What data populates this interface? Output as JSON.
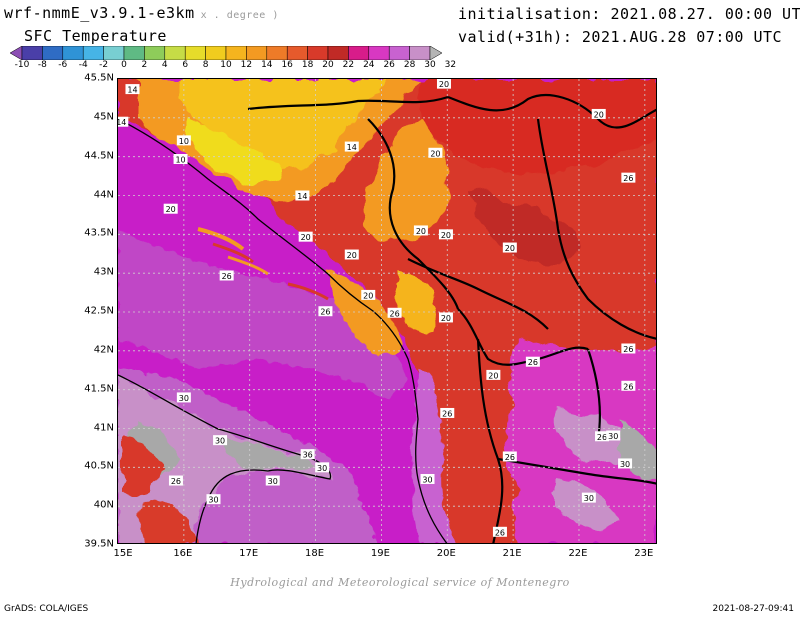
{
  "header": {
    "model": "wrf-nmmE_v3.9.1-e3km",
    "model_unit": "x . degree )",
    "field": "SFC Temperature",
    "init": "initialisation: 2021.08.27. 00:00 UTC",
    "valid": "valid(+31h): 2021.AUG.28 07:00 UTC"
  },
  "colorbar": {
    "labels": [
      "-10",
      "-8",
      "-6",
      "-4",
      "-2",
      "0",
      "2",
      "4",
      "6",
      "8",
      "10",
      "12",
      "14",
      "16",
      "18",
      "20",
      "22",
      "24",
      "26",
      "28",
      "30",
      "32"
    ],
    "colors": [
      "#8c4fb4",
      "#4a3fa8",
      "#2f6cc4",
      "#2f93d6",
      "#46b4e6",
      "#78cfd2",
      "#5fba84",
      "#8ecc5a",
      "#c6dc46",
      "#e6dc2a",
      "#f0cc1e",
      "#f5b41e",
      "#f39a22",
      "#ee7b28",
      "#e65a2c",
      "#d83a2a",
      "#c02a26",
      "#d81c8a",
      "#d838c2",
      "#c862d0",
      "#c890c8",
      "#b4b4b4"
    ]
  },
  "axes": {
    "lat_labels": [
      "45.5N",
      "45N",
      "44.5N",
      "44N",
      "43.5N",
      "43N",
      "42.5N",
      "42N",
      "41.5N",
      "41N",
      "40.5N",
      "40N",
      "39.5N"
    ],
    "lon_labels": [
      "15E",
      "16E",
      "17E",
      "18E",
      "19E",
      "20E",
      "21E",
      "22E",
      "23E"
    ]
  },
  "contour_labels": [
    {
      "text": "14",
      "lon": 15.22,
      "lat": 45.37
    },
    {
      "text": "14",
      "lon": 15.05,
      "lat": 44.95
    },
    {
      "text": "10",
      "lon": 16.0,
      "lat": 44.71
    },
    {
      "text": "10",
      "lon": 15.95,
      "lat": 44.47
    },
    {
      "text": "14",
      "lon": 18.55,
      "lat": 44.63
    },
    {
      "text": "14",
      "lon": 17.8,
      "lat": 44.0
    },
    {
      "text": "20",
      "lon": 15.8,
      "lat": 43.83
    },
    {
      "text": "20",
      "lon": 19.95,
      "lat": 45.44
    },
    {
      "text": "20",
      "lon": 22.3,
      "lat": 45.05
    },
    {
      "text": "20",
      "lon": 19.82,
      "lat": 44.55
    },
    {
      "text": "26",
      "lon": 22.75,
      "lat": 44.23
    },
    {
      "text": "20",
      "lon": 17.85,
      "lat": 43.47
    },
    {
      "text": "20",
      "lon": 19.6,
      "lat": 43.55
    },
    {
      "text": "20",
      "lon": 19.98,
      "lat": 43.5
    },
    {
      "text": "20",
      "lon": 20.95,
      "lat": 43.33
    },
    {
      "text": "20",
      "lon": 18.55,
      "lat": 43.24
    },
    {
      "text": "26",
      "lon": 16.65,
      "lat": 42.97
    },
    {
      "text": "20",
      "lon": 18.8,
      "lat": 42.72
    },
    {
      "text": "26",
      "lon": 18.15,
      "lat": 42.51
    },
    {
      "text": "26",
      "lon": 19.2,
      "lat": 42.49
    },
    {
      "text": "20",
      "lon": 19.98,
      "lat": 42.43
    },
    {
      "text": "26",
      "lon": 21.3,
      "lat": 41.86
    },
    {
      "text": "26",
      "lon": 22.75,
      "lat": 42.03
    },
    {
      "text": "20",
      "lon": 20.7,
      "lat": 41.69
    },
    {
      "text": "30",
      "lon": 16.0,
      "lat": 41.4
    },
    {
      "text": "26",
      "lon": 22.75,
      "lat": 41.55
    },
    {
      "text": "26",
      "lon": 20.0,
      "lat": 41.2
    },
    {
      "text": "26",
      "lon": 22.35,
      "lat": 40.9
    },
    {
      "text": "30",
      "lon": 22.52,
      "lat": 40.91
    },
    {
      "text": "30",
      "lon": 16.55,
      "lat": 40.85
    },
    {
      "text": "36",
      "lon": 17.88,
      "lat": 40.67
    },
    {
      "text": "26",
      "lon": 20.95,
      "lat": 40.64
    },
    {
      "text": "30",
      "lon": 18.1,
      "lat": 40.5
    },
    {
      "text": "30",
      "lon": 22.7,
      "lat": 40.55
    },
    {
      "text": "30",
      "lon": 17.35,
      "lat": 40.33
    },
    {
      "text": "30",
      "lon": 19.7,
      "lat": 40.35
    },
    {
      "text": "26",
      "lon": 15.88,
      "lat": 40.33
    },
    {
      "text": "30",
      "lon": 16.45,
      "lat": 40.09
    },
    {
      "text": "30",
      "lon": 22.15,
      "lat": 40.11
    },
    {
      "text": "26",
      "lon": 20.8,
      "lat": 39.67
    }
  ],
  "footer": {
    "credit": "Hydrological and Meteorological service of Montenegro",
    "grads": "GrADS: COLA/IGES",
    "timestamp": "2021-08-27-09:41"
  }
}
